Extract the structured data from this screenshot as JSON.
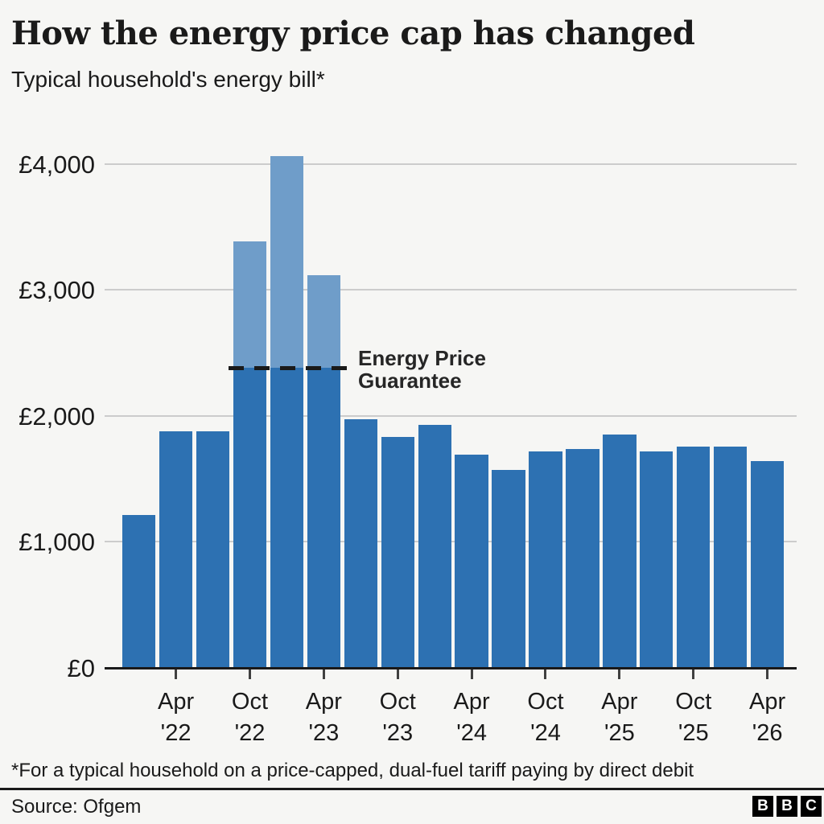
{
  "header": {
    "title": "How the energy price cap has changed",
    "subtitle": "Typical household's energy bill*"
  },
  "chart_data": {
    "type": "bar",
    "title": "How the energy price cap has changed",
    "subtitle": "Typical household's energy bill*",
    "xlabel": "",
    "ylabel": "",
    "unit": "GBP per year",
    "ylim": [
      0,
      4200
    ],
    "grid": "horizontal",
    "y_ticks": [
      {
        "value": 0,
        "label": "£0"
      },
      {
        "value": 1000,
        "label": "£1,000"
      },
      {
        "value": 2000,
        "label": "£2,000"
      },
      {
        "value": 3000,
        "label": "£3,000"
      },
      {
        "value": 4000,
        "label": "£4,000"
      }
    ],
    "x_axis_labels": [
      "Apr '22",
      "Oct '22",
      "Apr '23",
      "Oct '23",
      "Apr '24",
      "Oct '24",
      "Apr '25",
      "Oct '25",
      "Apr '26"
    ],
    "bars": [
      {
        "period": "Jan 2022",
        "bill": 1216
      },
      {
        "period": "Apr 2022",
        "bill": 1880,
        "tick_line1": "Apr",
        "tick_line2": "'22"
      },
      {
        "period": "Jul 2022",
        "bill": 1880
      },
      {
        "period": "Oct 2022",
        "bill": 2380,
        "cap": 3381,
        "tick_line1": "Oct",
        "tick_line2": "'22"
      },
      {
        "period": "Jan 2023",
        "bill": 2380,
        "cap": 4059
      },
      {
        "period": "Apr 2023",
        "bill": 2380,
        "cap": 3116,
        "tick_line1": "Apr",
        "tick_line2": "'23"
      },
      {
        "period": "Jul 2023",
        "bill": 1976
      },
      {
        "period": "Oct 2023",
        "bill": 1834,
        "tick_line1": "Oct",
        "tick_line2": "'23"
      },
      {
        "period": "Jan 2024",
        "bill": 1928
      },
      {
        "period": "Apr 2024",
        "bill": 1690,
        "tick_line1": "Apr",
        "tick_line2": "'24"
      },
      {
        "period": "Jul 2024",
        "bill": 1568
      },
      {
        "period": "Oct 2024",
        "bill": 1717,
        "tick_line1": "Oct",
        "tick_line2": "'24"
      },
      {
        "period": "Jan 2025",
        "bill": 1738
      },
      {
        "period": "Apr 2025",
        "bill": 1849,
        "tick_line1": "Apr",
        "tick_line2": "'25"
      },
      {
        "period": "Jul 2025",
        "bill": 1720,
        "tick_line1": "",
        "tick_line2": ""
      },
      {
        "period": "Oct 2025",
        "bill": 1755,
        "tick_line1": "Oct",
        "tick_line2": "'25"
      },
      {
        "period": "Jan 2026",
        "bill": 1758
      },
      {
        "period": "Apr 2026",
        "bill": 1644,
        "tick_line1": "Apr",
        "tick_line2": "'26"
      }
    ],
    "series": [
      {
        "name": "Typical household's energy bill",
        "color": "#2d71b2"
      },
      {
        "name": "Price cap level above Energy Price Guarantee",
        "color": "#6f9dc9"
      }
    ],
    "annotation": {
      "line1": "Energy Price",
      "line2": "Guarantee",
      "value": 2380
    },
    "colors": {
      "bar": "#2d71b2",
      "cap_bar": "#6f9dc9",
      "gridline": "#cccccc",
      "axis": "#1a1a1a",
      "annotation": "#1a1a1a",
      "background": "#f6f6f4"
    },
    "legend": "none"
  },
  "footer": {
    "footnote": "*For a typical household on a price-capped, dual-fuel tariff paying by direct debit",
    "source": "Source: Ofgem",
    "logo_letters": [
      "B",
      "B",
      "C"
    ]
  }
}
